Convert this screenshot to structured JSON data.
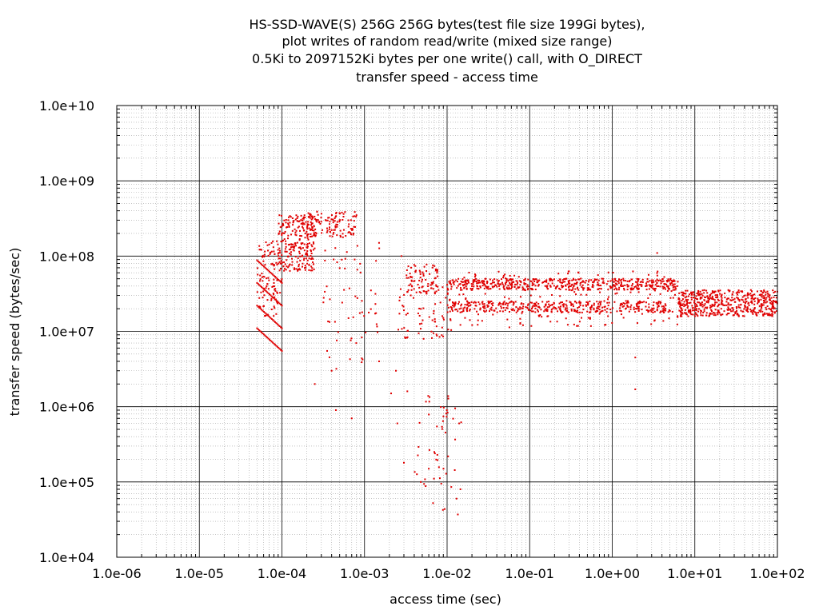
{
  "chart_data": {
    "type": "scatter",
    "title": [
      "HS-SSD-WAVE(S) 256G 256G bytes(test file size 199Gi bytes),",
      "plot writes of random read/write (mixed size range)",
      "0.5Ki to 2097152Ki bytes per one write() call, with O_DIRECT",
      "transfer speed - access time"
    ],
    "xlabel": "access time (sec)",
    "ylabel": "transfer speed (bytes/sec)",
    "xscale": "log",
    "yscale": "log",
    "xlim": [
      1e-06,
      100
    ],
    "ylim": [
      10000.0,
      10000000000.0
    ],
    "xticks": [
      "1.0e-06",
      "1.0e-05",
      "1.0e-04",
      "1.0e-03",
      "1.0e-02",
      "1.0e-01",
      "1.0e+00",
      "1.0e+01",
      "1.0e+02"
    ],
    "yticks": [
      "1.0e+04",
      "1.0e+05",
      "1.0e+06",
      "1.0e+07",
      "1.0e+08",
      "1.0e+09",
      "1.0e+10"
    ],
    "grid": true,
    "minor_grid": true,
    "point_color": "#e00000",
    "diagonal_bands": [
      {
        "x": [
          5e-05,
          0.0001
        ],
        "y": [
          11000000,
          5500000
        ]
      },
      {
        "x": [
          5e-05,
          0.0001
        ],
        "y": [
          22000000,
          11000000
        ]
      },
      {
        "x": [
          5e-05,
          0.0001
        ],
        "y": [
          44000000,
          22000000
        ]
      },
      {
        "x": [
          5e-05,
          0.0001
        ],
        "y": [
          88000000,
          44000000
        ]
      }
    ],
    "clusters": [
      {
        "xlog": [
          -4.3,
          -4.0
        ],
        "ylog": [
          7.2,
          8.2
        ],
        "n": 100
      },
      {
        "xlog": [
          -4.05,
          -3.6
        ],
        "ylog": [
          7.8,
          8.55
        ],
        "n": 260
      },
      {
        "xlog": [
          -3.7,
          -3.1
        ],
        "ylog": [
          8.25,
          8.6
        ],
        "n": 120
      },
      {
        "xlog": [
          -3.5,
          -2.8
        ],
        "ylog": [
          6.5,
          8.2
        ],
        "n": 60
      },
      {
        "xlog": [
          -2.5,
          -2.1
        ],
        "ylog": [
          7.5,
          7.9
        ],
        "n": 80
      },
      {
        "xlog": [
          -2.6,
          -1.95
        ],
        "ylog": [
          6.9,
          7.6
        ],
        "n": 70
      },
      {
        "xlog": [
          -2.4,
          -1.9
        ],
        "ylog": [
          4.6,
          6.3
        ],
        "n": 45
      },
      {
        "xlog": [
          -2.0,
          0.8
        ],
        "ylog": [
          7.55,
          7.7
        ],
        "n": 500
      },
      {
        "xlog": [
          -2.0,
          0.7
        ],
        "ylog": [
          7.25,
          7.4
        ],
        "n": 380
      },
      {
        "xlog": [
          -2.0,
          0.8
        ],
        "ylog": [
          7.05,
          7.8
        ],
        "n": 200
      },
      {
        "xlog": [
          0.8,
          2.0
        ],
        "ylog": [
          7.2,
          7.55
        ],
        "n": 520
      }
    ],
    "outliers": [
      {
        "x": 0.0015,
        "y": 4000000
      },
      {
        "x": 0.00025,
        "y": 2000000
      },
      {
        "x": 0.0004,
        "y": 3000000
      },
      {
        "x": 0.00045,
        "y": 900000
      },
      {
        "x": 0.0007,
        "y": 700000
      },
      {
        "x": 0.0021,
        "y": 1500000
      },
      {
        "x": 0.0024,
        "y": 3000000
      },
      {
        "x": 0.0025,
        "y": 600000
      },
      {
        "x": 0.0005,
        "y": 300000000
      },
      {
        "x": 0.0008,
        "y": 350000000
      },
      {
        "x": 0.0015,
        "y": 150000000
      },
      {
        "x": 0.0028,
        "y": 100000000
      },
      {
        "x": 0.0033,
        "y": 1600000
      },
      {
        "x": 0.003,
        "y": 180000
      },
      {
        "x": 0.0048,
        "y": 100000
      },
      {
        "x": 0.0055,
        "y": 88000
      },
      {
        "x": 0.0085,
        "y": 95000
      },
      {
        "x": 0.013,
        "y": 60000
      },
      {
        "x": 0.0135,
        "y": 37000
      },
      {
        "x": 0.0145,
        "y": 80000
      },
      {
        "x": 0.014,
        "y": 600000
      },
      {
        "x": 0.0148,
        "y": 620000
      },
      {
        "x": 1.9,
        "y": 1700000
      },
      {
        "x": 1.9,
        "y": 4500000
      },
      {
        "x": 3.5,
        "y": 110000000
      },
      {
        "x": 0.006,
        "y": 150000
      },
      {
        "x": 0.007,
        "y": 250000
      }
    ]
  }
}
